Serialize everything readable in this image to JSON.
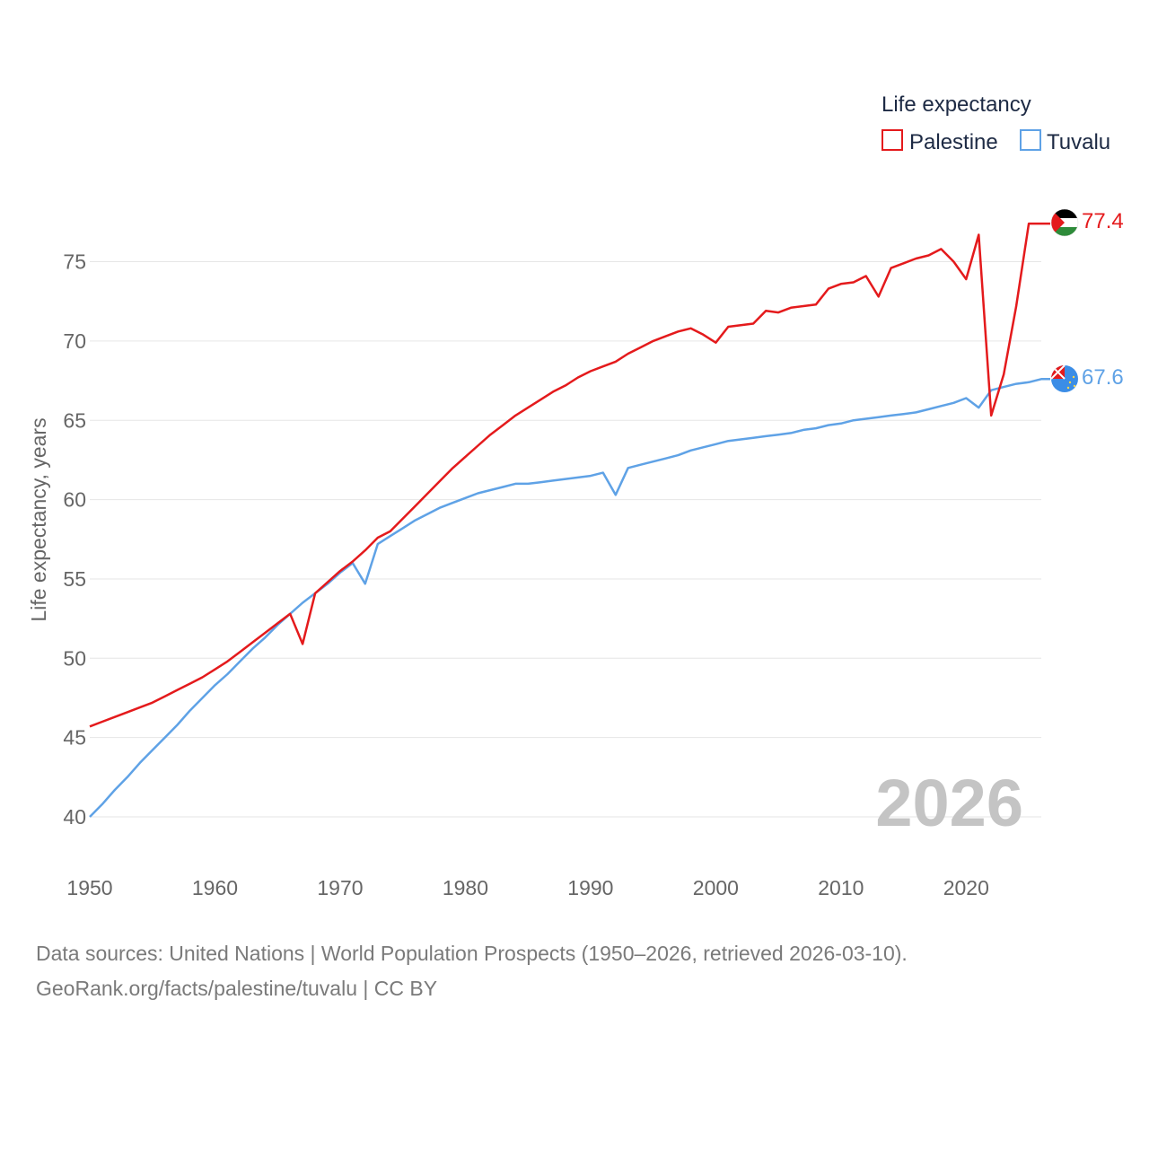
{
  "chart_data": {
    "type": "line",
    "title": "",
    "xlabel": "",
    "ylabel": "Life expectancy, years",
    "xlim": [
      1950,
      2026
    ],
    "ylim": [
      40,
      77.4
    ],
    "x_ticks": [
      "1950",
      "1960",
      "1970",
      "1980",
      "1990",
      "2000",
      "2010",
      "2020"
    ],
    "y_ticks": [
      "40",
      "45",
      "50",
      "55",
      "60",
      "65",
      "70",
      "75"
    ],
    "legend_title": "Life expectancy",
    "legend_position": "top-right",
    "current_year": "2026",
    "series": [
      {
        "name": "Palestine",
        "color": "#e41a1c",
        "end_label": "77.4",
        "x": [
          1950,
          1951,
          1952,
          1953,
          1954,
          1955,
          1956,
          1957,
          1958,
          1959,
          1960,
          1961,
          1962,
          1963,
          1964,
          1965,
          1966,
          1967,
          1968,
          1969,
          1970,
          1971,
          1972,
          1973,
          1974,
          1975,
          1976,
          1977,
          1978,
          1979,
          1980,
          1981,
          1982,
          1983,
          1984,
          1985,
          1986,
          1987,
          1988,
          1989,
          1990,
          1991,
          1992,
          1993,
          1994,
          1995,
          1996,
          1997,
          1998,
          1999,
          2000,
          2001,
          2002,
          2003,
          2004,
          2005,
          2006,
          2007,
          2008,
          2009,
          2010,
          2011,
          2012,
          2013,
          2014,
          2015,
          2016,
          2017,
          2018,
          2019,
          2020,
          2021,
          2022,
          2023,
          2024,
          2025,
          2026
        ],
        "values": [
          45.7,
          46.0,
          46.3,
          46.6,
          46.9,
          47.2,
          47.6,
          48.0,
          48.4,
          48.8,
          49.3,
          49.8,
          50.4,
          51.0,
          51.6,
          52.2,
          52.8,
          50.9,
          54.1,
          54.8,
          55.5,
          56.1,
          56.8,
          57.6,
          58.0,
          58.8,
          59.6,
          60.4,
          61.2,
          62.0,
          62.7,
          63.4,
          64.1,
          64.7,
          65.3,
          65.8,
          66.3,
          66.8,
          67.2,
          67.7,
          68.1,
          68.4,
          68.7,
          69.2,
          69.6,
          70.0,
          70.3,
          70.6,
          70.8,
          70.4,
          69.9,
          70.9,
          71.0,
          71.1,
          71.9,
          71.8,
          72.1,
          72.2,
          72.3,
          73.3,
          73.6,
          73.7,
          74.1,
          72.8,
          74.6,
          74.9,
          75.2,
          75.4,
          75.8,
          75.0,
          73.9,
          76.7,
          65.3,
          67.9,
          72.2,
          77.4,
          77.4
        ]
      },
      {
        "name": "Tuvalu",
        "color": "#5fa2e6",
        "end_label": "67.6",
        "x": [
          1950,
          1951,
          1952,
          1953,
          1954,
          1955,
          1956,
          1957,
          1958,
          1959,
          1960,
          1961,
          1962,
          1963,
          1964,
          1965,
          1966,
          1967,
          1968,
          1969,
          1970,
          1971,
          1972,
          1973,
          1974,
          1975,
          1976,
          1977,
          1978,
          1979,
          1980,
          1981,
          1982,
          1983,
          1984,
          1985,
          1986,
          1987,
          1988,
          1989,
          1990,
          1991,
          1992,
          1993,
          1994,
          1995,
          1996,
          1997,
          1998,
          1999,
          2000,
          2001,
          2002,
          2003,
          2004,
          2005,
          2006,
          2007,
          2008,
          2009,
          2010,
          2011,
          2012,
          2013,
          2014,
          2015,
          2016,
          2017,
          2018,
          2019,
          2020,
          2021,
          2022,
          2023,
          2024,
          2025,
          2026
        ],
        "values": [
          40.0,
          40.8,
          41.7,
          42.5,
          43.4,
          44.2,
          45.0,
          45.8,
          46.7,
          47.5,
          48.3,
          49.0,
          49.8,
          50.6,
          51.3,
          52.1,
          52.8,
          53.5,
          54.1,
          54.7,
          55.4,
          56.0,
          54.7,
          57.2,
          57.7,
          58.2,
          58.7,
          59.1,
          59.5,
          59.8,
          60.1,
          60.4,
          60.6,
          60.8,
          61.0,
          61.0,
          61.1,
          61.2,
          61.3,
          61.4,
          61.5,
          61.7,
          60.3,
          62.0,
          62.2,
          62.4,
          62.6,
          62.8,
          63.1,
          63.3,
          63.5,
          63.7,
          63.8,
          63.9,
          64.0,
          64.1,
          64.2,
          64.4,
          64.5,
          64.7,
          64.8,
          65.0,
          65.1,
          65.2,
          65.3,
          65.4,
          65.5,
          65.7,
          65.9,
          66.1,
          66.4,
          65.8,
          66.9,
          67.1,
          67.3,
          67.4,
          67.6
        ]
      }
    ]
  },
  "footer": {
    "source_line": "Data sources: United Nations | World Population Prospects (1950–2026, retrieved 2026-03-10).",
    "credit_line": "GeoRank.org/facts/palestine/tuvalu | CC BY"
  }
}
